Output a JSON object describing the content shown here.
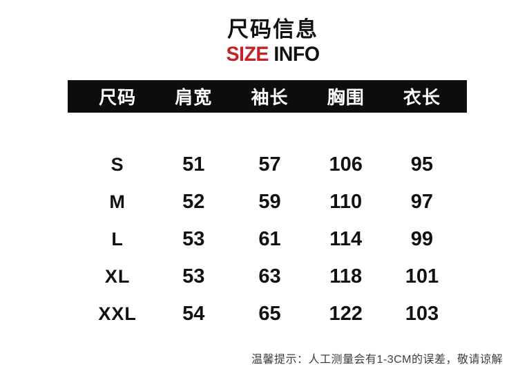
{
  "title": {
    "zh": "尺码信息",
    "en_accent": "SIZE",
    "en_rest": " INFO"
  },
  "colors": {
    "accent_red": "#c8202a",
    "header_bg": "#0d0d0d",
    "page_bg": "#ffffff",
    "text": "#111111",
    "note_text": "#3c3c3c"
  },
  "chart_data": {
    "type": "table",
    "title": "尺码信息 SIZE INFO",
    "columns": [
      "尺码",
      "肩宽",
      "袖长",
      "胸围",
      "衣长"
    ],
    "rows": [
      [
        "S",
        "51",
        "57",
        "106",
        "95"
      ],
      [
        "M",
        "52",
        "59",
        "110",
        "97"
      ],
      [
        "L",
        "53",
        "61",
        "114",
        "99"
      ],
      [
        "XL",
        "53",
        "63",
        "118",
        "101"
      ],
      [
        "XXL",
        "54",
        "65",
        "122",
        "103"
      ]
    ],
    "note": "温馨提示：人工测量会有1-3CM的误差，敬请谅解",
    "layout": "black header bar, no gridlines, white background"
  }
}
